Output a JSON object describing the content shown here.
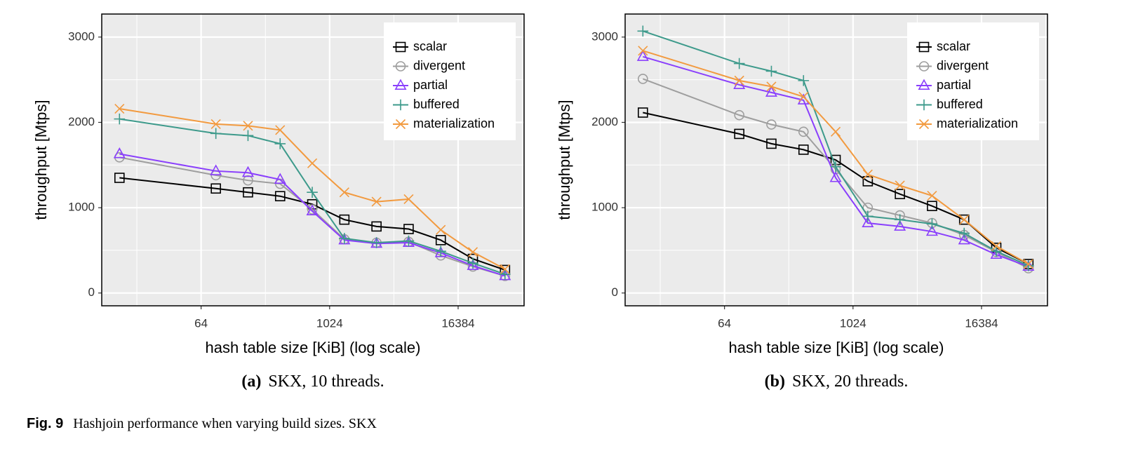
{
  "chart_data": [
    {
      "type": "line",
      "log_x": true,
      "grid": true,
      "legend": "top-right",
      "xlabel": "hash table size [KiB] (log scale)",
      "ylabel": "throughput [Mtps]",
      "subcaption_label": "(a)",
      "subcaption": "SKX, 10 threads.",
      "x": [
        11,
        88,
        176,
        352,
        704,
        1408,
        2816,
        5632,
        11264,
        22528,
        45056
      ],
      "xlim": [
        7.5,
        68000
      ],
      "xticks": [
        64,
        1024,
        16384
      ],
      "ylim": [
        -150,
        3270
      ],
      "yticks": [
        0,
        1000,
        2000,
        3000
      ],
      "series": [
        {
          "name": "scalar",
          "color": "#000000",
          "marker": "square",
          "values": [
            1350,
            1225,
            1180,
            1135,
            1040,
            860,
            780,
            750,
            620,
            400,
            270
          ]
        },
        {
          "name": "divergent",
          "color": "#9e9e9e",
          "marker": "circle",
          "values": [
            1590,
            1380,
            1320,
            1280,
            980,
            630,
            590,
            600,
            440,
            310,
            200
          ]
        },
        {
          "name": "partial",
          "color": "#8a3ffc",
          "marker": "triangle",
          "values": [
            1630,
            1430,
            1410,
            1330,
            960,
            620,
            580,
            590,
            470,
            320,
            200
          ]
        },
        {
          "name": "buffered",
          "color": "#3d9a8b",
          "marker": "plus",
          "values": [
            2040,
            1870,
            1845,
            1750,
            1180,
            640,
            590,
            610,
            490,
            350,
            220
          ]
        },
        {
          "name": "materialization",
          "color": "#f29a3f",
          "marker": "cross",
          "values": [
            2160,
            1980,
            1960,
            1910,
            1520,
            1180,
            1070,
            1100,
            740,
            480,
            280
          ]
        }
      ]
    },
    {
      "type": "line",
      "log_x": true,
      "grid": true,
      "legend": "top-right",
      "xlabel": "hash table size [KiB] (log scale)",
      "ylabel": "throughput [Mtps]",
      "subcaption_label": "(b)",
      "subcaption": "SKX, 20 threads.",
      "x": [
        11,
        88,
        176,
        352,
        704,
        1408,
        2816,
        5632,
        11264,
        22528,
        45056
      ],
      "xlim": [
        7.5,
        68000
      ],
      "xticks": [
        64,
        1024,
        16384
      ],
      "ylim": [
        -150,
        3270
      ],
      "yticks": [
        0,
        1000,
        2000,
        3000
      ],
      "series": [
        {
          "name": "scalar",
          "color": "#000000",
          "marker": "square",
          "values": [
            2115,
            1865,
            1750,
            1680,
            1560,
            1310,
            1160,
            1020,
            860,
            530,
            340
          ]
        },
        {
          "name": "divergent",
          "color": "#9e9e9e",
          "marker": "circle",
          "values": [
            2510,
            2085,
            1975,
            1890,
            1450,
            1000,
            910,
            820,
            680,
            480,
            290
          ]
        },
        {
          "name": "partial",
          "color": "#8a3ffc",
          "marker": "triangle",
          "values": [
            2770,
            2440,
            2350,
            2260,
            1350,
            820,
            780,
            720,
            620,
            450,
            310
          ]
        },
        {
          "name": "buffered",
          "color": "#3d9a8b",
          "marker": "plus",
          "values": [
            3070,
            2690,
            2600,
            2490,
            1480,
            900,
            860,
            810,
            700,
            490,
            320
          ]
        },
        {
          "name": "materialization",
          "color": "#f29a3f",
          "marker": "cross",
          "values": [
            2840,
            2490,
            2420,
            2300,
            1890,
            1390,
            1260,
            1140,
            860,
            550,
            340
          ]
        }
      ]
    }
  ],
  "figure_caption": {
    "label": "Fig. 9",
    "text": "Hashjoin performance when varying build sizes. SKX"
  }
}
